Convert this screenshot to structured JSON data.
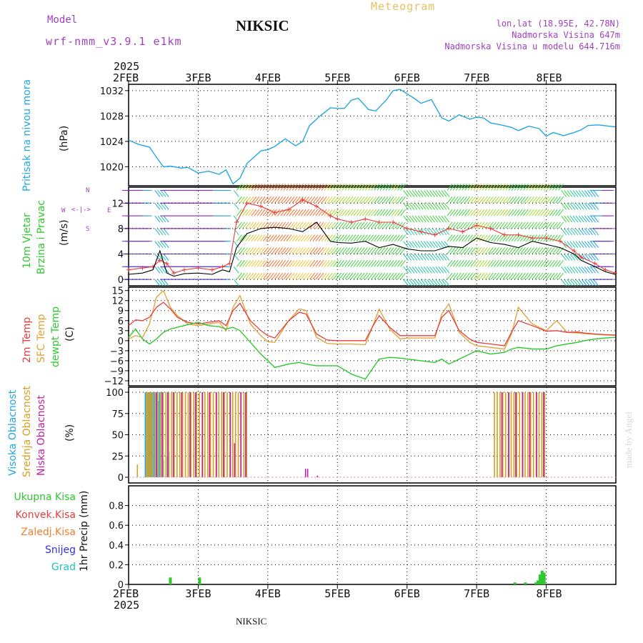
{
  "header": {
    "model_label": "Model",
    "model_name": "wrf-nmm_v3.9.1 e1km",
    "station": "NIKSIC",
    "meteogram": "Meteogram",
    "lonlat": "lon,lat (18.95E, 42.78N)",
    "altitude": "Nadmorska Visina 647m",
    "model_altitude": "Nadmorska Visina u modelu 644.716m",
    "year_top": "2025",
    "year_bottom": "2025",
    "footer_station": "NIKSIC",
    "credit": "made by Angel"
  },
  "colors": {
    "pressure": "#22a6e0",
    "temp2m": "#e83c3c",
    "sfc_temp": "#e0a030",
    "dewpt": "#2ec82e",
    "wind_label": "#2ec82e",
    "cloud_high": "#22a6e0",
    "cloud_mid": "#d4a020",
    "cloud_low": "#c020a0",
    "precip_total": "#2ec82e",
    "precip_conv": "#e83c3c",
    "precip_frozen": "#f08030",
    "snow": "#3030e0",
    "hail": "#20c0c0",
    "header_purple": "#a040c0",
    "meteogram_orange": "#e8c060"
  },
  "axis": {
    "date_ticks": [
      "2FEB",
      "3FEB",
      "4FEB",
      "5FEB",
      "6FEB",
      "7FEB",
      "8FEB"
    ]
  },
  "panels": {
    "pressure": {
      "label": "Pritisak na nivou mora",
      "unit": "(hPa)"
    },
    "wind": {
      "label1": "10m Vjetar",
      "label2": "Brzina i Pravac",
      "unit": "(m/s)",
      "compass_n": "N",
      "compass_s": "S",
      "compass_w": "W",
      "compass_e": "E"
    },
    "temp": {
      "label1": "2m Temp",
      "label2": "SFC Temp",
      "label3": "dewpt Temp",
      "unit": "(C)"
    },
    "cloud": {
      "label1": "Visoka Oblacnost",
      "label2": "Srednja Oblacnost",
      "label3": "Niska Oblacnost",
      "unit": "(%)"
    },
    "precip": {
      "legend": [
        "Ukupna Kisa",
        "Konvek.Kisa",
        "Zaledj.Kisa",
        "Snijeg",
        "Grad"
      ],
      "unit": "1hr Precip (mm)"
    }
  },
  "chart_data": [
    {
      "type": "line",
      "id": "pressure",
      "x_unit": "days after 2 Feb 2025 00 UTC",
      "ylim": [
        1017,
        1033
      ],
      "yticks": [
        "1020",
        "1024",
        "1028",
        "1032"
      ],
      "grid": true,
      "series": [
        {
          "x": [
            0,
            0.15,
            0.3,
            0.4,
            0.5,
            0.6,
            0.75,
            0.85,
            1.0,
            1.15,
            1.3,
            1.4,
            1.5,
            1.6,
            1.7,
            1.8,
            1.9,
            2.0,
            2.1,
            2.25,
            2.4,
            2.5,
            2.6,
            2.75,
            2.9,
            3.0,
            3.1,
            3.2,
            3.3,
            3.45,
            3.55,
            3.7,
            3.8,
            3.9,
            4.0,
            4.1,
            4.2,
            4.35,
            4.5,
            4.6,
            4.75,
            4.9,
            5.0,
            5.1,
            5.2,
            5.35,
            5.5,
            5.6,
            5.75,
            5.9,
            6.0,
            6.1,
            6.25,
            6.4,
            6.5,
            6.6,
            6.75,
            6.9,
            6.99
          ],
          "values": [
            1024.2,
            1023.5,
            1023.1,
            1021.5,
            1020.0,
            1020.1,
            1019.8,
            1019.9,
            1019.0,
            1019.3,
            1018.8,
            1019.5,
            1017.3,
            1018.2,
            1020.5,
            1021.5,
            1022.5,
            1022.7,
            1023.2,
            1024.4,
            1023.3,
            1024.0,
            1026.5,
            1028.0,
            1029.3,
            1029.2,
            1029.2,
            1030.5,
            1030.8,
            1029.0,
            1028.8,
            1030.5,
            1032.0,
            1032.2,
            1031.5,
            1030.8,
            1030.0,
            1030.6,
            1027.7,
            1027.2,
            1028.2,
            1027.5,
            1027.8,
            1027.7,
            1026.9,
            1026.6,
            1026.2,
            1025.7,
            1026.4,
            1026.0,
            1024.8,
            1025.4,
            1024.9,
            1025.4,
            1025.8,
            1026.5,
            1026.6,
            1026.4,
            1026.3
          ]
        }
      ]
    },
    {
      "type": "line",
      "id": "wind",
      "x_unit": "days after 2 Feb 2025 00 UTC",
      "ylim": [
        -1,
        14.5
      ],
      "yticks": [
        "0",
        "4",
        "8",
        "12"
      ],
      "grid": true,
      "series": [
        {
          "name": "speed",
          "x": [
            0,
            0.2,
            0.35,
            0.45,
            0.55,
            0.65,
            0.8,
            1.0,
            1.2,
            1.35,
            1.45,
            1.55,
            1.7,
            1.9,
            2.1,
            2.3,
            2.5,
            2.7,
            2.9,
            3.0,
            3.2,
            3.4,
            3.6,
            3.8,
            4.0,
            4.2,
            4.4,
            4.6,
            4.8,
            5.0,
            5.2,
            5.4,
            5.6,
            5.8,
            6.0,
            6.2,
            6.4,
            6.5,
            6.7,
            6.85,
            6.99
          ],
          "values": [
            0.8,
            1.0,
            1.5,
            4.5,
            1.0,
            0.5,
            0.9,
            1.0,
            0.8,
            1.5,
            1.2,
            5.0,
            7.2,
            8.0,
            8.2,
            8.0,
            7.5,
            9.0,
            6.0,
            5.8,
            5.7,
            6.0,
            5.0,
            5.5,
            4.8,
            4.5,
            4.5,
            5.2,
            5.0,
            6.5,
            5.8,
            5.5,
            5.0,
            6.0,
            5.5,
            5.0,
            4.0,
            3.0,
            2.0,
            1.2,
            0.8
          ]
        },
        {
          "name": "gust",
          "x": [
            0,
            0.2,
            0.35,
            0.45,
            0.55,
            0.65,
            0.8,
            1.0,
            1.2,
            1.35,
            1.45,
            1.55,
            1.7,
            1.9,
            2.1,
            2.3,
            2.5,
            2.7,
            2.9,
            3.0,
            3.2,
            3.4,
            3.6,
            3.8,
            4.0,
            4.2,
            4.4,
            4.6,
            4.8,
            5.0,
            5.2,
            5.4,
            5.6,
            5.8,
            6.0,
            6.2,
            6.4,
            6.5,
            6.7,
            6.85,
            6.99
          ],
          "values": [
            1.5,
            1.8,
            2.0,
            3.0,
            2.5,
            1.0,
            1.5,
            1.8,
            1.5,
            2.0,
            2.5,
            9.0,
            12.0,
            11.5,
            10.5,
            11.0,
            12.5,
            11.5,
            10.0,
            9.5,
            9.0,
            9.5,
            9.0,
            9.0,
            8.0,
            7.5,
            7.0,
            8.0,
            7.5,
            8.5,
            8.0,
            7.0,
            7.0,
            6.5,
            6.5,
            6.0,
            4.5,
            3.5,
            2.5,
            1.5,
            1.0
          ]
        }
      ]
    },
    {
      "type": "line",
      "id": "temperature",
      "x_unit": "days after 2 Feb 2025 00 UTC",
      "ylim": [
        -13.5,
        16
      ],
      "yticks": [
        "15",
        "12",
        "9",
        "6",
        "3",
        "0",
        "−3",
        "−6",
        "−9",
        "−12"
      ],
      "grid": true,
      "series": [
        {
          "name": "2m Temp",
          "x": [
            0,
            0.1,
            0.2,
            0.3,
            0.4,
            0.5,
            0.6,
            0.7,
            0.85,
            1.0,
            1.15,
            1.3,
            1.4,
            1.5,
            1.6,
            1.75,
            1.9,
            2.0,
            2.1,
            2.3,
            2.45,
            2.55,
            2.7,
            2.85,
            3.0,
            3.2,
            3.4,
            3.5,
            3.6,
            3.75,
            3.9,
            4.0,
            4.2,
            4.4,
            4.5,
            4.6,
            4.75,
            4.9,
            5.0,
            5.2,
            5.4,
            5.5,
            5.6,
            5.8,
            6.0,
            6.15,
            6.3,
            6.45,
            6.55,
            6.7,
            6.85,
            6.99
          ],
          "values": [
            4.5,
            6.2,
            6.0,
            7.0,
            10.0,
            11.5,
            9.5,
            7.0,
            5.5,
            5.0,
            5.5,
            6.0,
            4.5,
            9.0,
            11.2,
            6.0,
            3.0,
            1.5,
            0.8,
            6.0,
            8.5,
            8.0,
            2.0,
            0.2,
            0.0,
            0.0,
            0.0,
            4.0,
            7.5,
            4.0,
            1.5,
            1.5,
            1.5,
            1.5,
            7.0,
            9.0,
            3.0,
            0.5,
            -0.5,
            -1.0,
            -1.5,
            2.5,
            6.0,
            4.5,
            2.8,
            3.0,
            2.5,
            2.6,
            2.3,
            2.0,
            1.8,
            1.7
          ]
        },
        {
          "name": "SFC Temp",
          "x": [
            0,
            0.1,
            0.2,
            0.3,
            0.4,
            0.5,
            0.6,
            0.7,
            0.85,
            1.0,
            1.15,
            1.3,
            1.4,
            1.5,
            1.6,
            1.75,
            1.9,
            2.0,
            2.1,
            2.3,
            2.45,
            2.55,
            2.7,
            2.85,
            3.0,
            3.2,
            3.4,
            3.5,
            3.6,
            3.75,
            3.9,
            4.0,
            4.2,
            4.4,
            4.5,
            4.6,
            4.75,
            4.9,
            5.0,
            5.2,
            5.4,
            5.5,
            5.6,
            5.8,
            6.0,
            6.15,
            6.3,
            6.45,
            6.55,
            6.7,
            6.85,
            6.99
          ],
          "values": [
            0.5,
            1.5,
            1.0,
            5.0,
            13.0,
            15.0,
            10.0,
            7.5,
            5.0,
            4.5,
            5.0,
            5.5,
            3.0,
            10.0,
            13.5,
            5.0,
            1.5,
            -0.3,
            -0.5,
            6.0,
            9.5,
            9.0,
            1.0,
            -0.8,
            -1.0,
            -1.0,
            -1.2,
            4.0,
            9.5,
            3.5,
            0.5,
            0.8,
            0.8,
            0.8,
            8.0,
            11.0,
            2.5,
            -0.5,
            -1.5,
            -2.0,
            -2.5,
            2.0,
            10.0,
            5.0,
            3.0,
            6.0,
            2.5,
            2.3,
            2.1,
            1.9,
            1.7,
            1.6
          ]
        },
        {
          "name": "dewpt Temp",
          "x": [
            0,
            0.1,
            0.2,
            0.3,
            0.4,
            0.5,
            0.6,
            0.7,
            0.85,
            1.0,
            1.15,
            1.3,
            1.4,
            1.5,
            1.6,
            1.75,
            1.9,
            2.0,
            2.1,
            2.3,
            2.45,
            2.55,
            2.7,
            2.85,
            3.0,
            3.2,
            3.4,
            3.5,
            3.6,
            3.75,
            3.9,
            4.0,
            4.2,
            4.4,
            4.5,
            4.6,
            4.75,
            4.9,
            5.0,
            5.2,
            5.4,
            5.5,
            5.6,
            5.8,
            6.0,
            6.15,
            6.3,
            6.45,
            6.55,
            6.7,
            6.85,
            6.99
          ],
          "values": [
            1.0,
            3.5,
            0.5,
            -1.0,
            0.5,
            2.5,
            3.5,
            4.0,
            4.8,
            5.5,
            4.5,
            4.2,
            3.5,
            4.0,
            3.0,
            -0.5,
            -4.0,
            -6.0,
            -8.0,
            -7.0,
            -6.5,
            -7.0,
            -7.5,
            -7.5,
            -7.5,
            -10.0,
            -11.5,
            -8.5,
            -5.5,
            -5.0,
            -5.2,
            -5.5,
            -6.0,
            -6.5,
            -5.5,
            -7.0,
            -5.5,
            -4.0,
            -3.0,
            -4.0,
            -3.5,
            -2.5,
            -2.0,
            -2.5,
            -2.5,
            -1.5,
            -1.0,
            -0.5,
            0.0,
            0.5,
            0.8,
            1.0
          ]
        }
      ]
    },
    {
      "type": "bar",
      "id": "cloud",
      "x_unit": "days after 2 Feb 2025 00 UTC",
      "ylim": [
        0,
        100
      ],
      "yticks": [
        "0",
        "25",
        "50",
        "75",
        "100"
      ],
      "grid": true,
      "series": [
        {
          "name": "Visoka Oblacnost",
          "x": [
            0.24,
            0.26,
            0.28,
            0.3,
            0.32,
            0.34,
            0.36,
            0.38,
            0.4,
            0.42,
            0.44,
            0.46,
            0.5,
            0.54,
            0.58
          ],
          "values": [
            100,
            100,
            100,
            100,
            100,
            100,
            100,
            100,
            100,
            90,
            100,
            100,
            20,
            25,
            30
          ]
        },
        {
          "name": "Srednja Oblacnost",
          "x": [
            0.12,
            0.25,
            0.27,
            0.29,
            0.31,
            0.33,
            0.37,
            0.41,
            0.45,
            0.49,
            0.53,
            0.57,
            0.61,
            0.65,
            0.69,
            0.73,
            0.77,
            0.81,
            0.85,
            0.89,
            0.93,
            0.97,
            1.01,
            1.05,
            1.09,
            1.13,
            1.17,
            1.21,
            1.25,
            1.29,
            1.33,
            1.37,
            1.41,
            1.45,
            1.49,
            1.53,
            1.57,
            1.61,
            1.65,
            1.69,
            5.25,
            5.29,
            5.33,
            5.37,
            5.41,
            5.45,
            5.49,
            5.53,
            5.57,
            5.61,
            5.65,
            5.69,
            5.73,
            5.77,
            5.81,
            5.85,
            5.89,
            5.93,
            5.97
          ],
          "values": [
            15,
            100,
            100,
            100,
            100,
            100,
            100,
            100,
            100,
            100,
            100,
            100,
            100,
            100,
            100,
            100,
            100,
            100,
            100,
            100,
            100,
            100,
            100,
            100,
            100,
            100,
            100,
            100,
            100,
            100,
            100,
            100,
            100,
            100,
            100,
            100,
            100,
            100,
            100,
            100,
            100,
            100,
            100,
            100,
            100,
            100,
            100,
            100,
            100,
            100,
            100,
            100,
            100,
            100,
            100,
            100,
            100,
            100,
            100
          ]
        },
        {
          "name": "Niska Oblacnost",
          "x": [
            0.39,
            0.47,
            0.55,
            0.63,
            0.75,
            0.87,
            0.95,
            1.05,
            1.15,
            1.25,
            1.35,
            1.45,
            1.51,
            1.6,
            1.67,
            2.53,
            2.56,
            2.7,
            5.35,
            5.45,
            5.55,
            5.65,
            5.75,
            5.85,
            5.95
          ],
          "values": [
            100,
            100,
            100,
            100,
            100,
            100,
            100,
            100,
            100,
            100,
            100,
            100,
            40,
            100,
            100,
            10,
            10,
            2,
            100,
            100,
            100,
            100,
            100,
            100,
            100
          ]
        }
      ]
    },
    {
      "type": "bar",
      "id": "precip",
      "x_unit": "days after 2 Feb 2025 00 UTC",
      "ylim": [
        0,
        1.0
      ],
      "yticks": [
        "0",
        "0.2",
        "0.4",
        "0.6",
        "0.8"
      ],
      "grid": true,
      "series": [
        {
          "name": "Ukupna Kisa",
          "x": [
            0.6,
            1.02,
            5.55,
            5.7,
            5.85,
            5.88,
            5.91,
            5.94,
            5.97
          ],
          "values": [
            0.07,
            0.07,
            0.02,
            0.02,
            0.02,
            0.04,
            0.1,
            0.14,
            0.12
          ]
        }
      ]
    }
  ]
}
